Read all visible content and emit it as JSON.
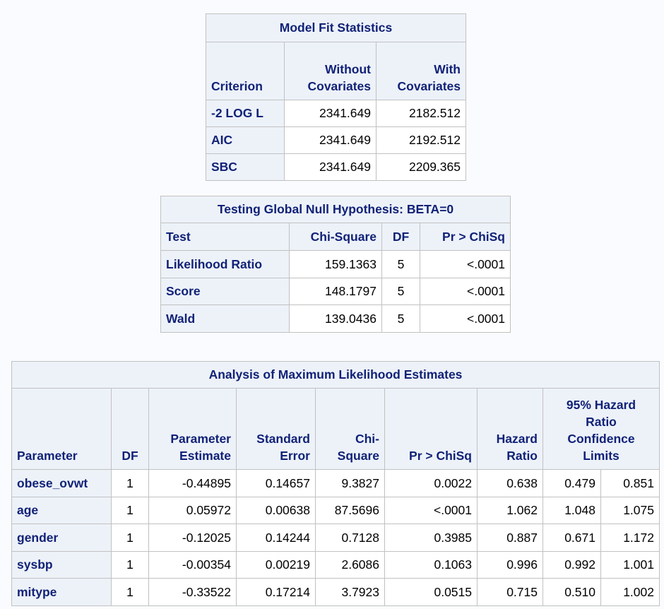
{
  "model_fit": {
    "title": "Model Fit Statistics",
    "headers": {
      "criterion": "Criterion",
      "without_1": "Without",
      "without_2": "Covariates",
      "with_1": "With",
      "with_2": "Covariates"
    },
    "rows": [
      {
        "criterion": "-2 LOG L",
        "without": "2341.649",
        "with": "2182.512"
      },
      {
        "criterion": "AIC",
        "without": "2341.649",
        "with": "2192.512"
      },
      {
        "criterion": "SBC",
        "without": "2341.649",
        "with": "2209.365"
      }
    ]
  },
  "global_null": {
    "title": "Testing Global Null Hypothesis: BETA=0",
    "headers": {
      "test": "Test",
      "chisq": "Chi-Square",
      "df": "DF",
      "p": "Pr > ChiSq"
    },
    "rows": [
      {
        "test": "Likelihood Ratio",
        "chisq": "159.1363",
        "df": "5",
        "p": "<.0001"
      },
      {
        "test": "Score",
        "chisq": "148.1797",
        "df": "5",
        "p": "<.0001"
      },
      {
        "test": "Wald",
        "chisq": "139.0436",
        "df": "5",
        "p": "<.0001"
      }
    ]
  },
  "mle": {
    "title": "Analysis of Maximum Likelihood Estimates",
    "headers": {
      "parameter": "Parameter",
      "df": "DF",
      "estimate_1": "Parameter",
      "estimate_2": "Estimate",
      "stderr_1": "Standard",
      "stderr_2": "Error",
      "chisq_1": "Chi-",
      "chisq_2": "Square",
      "p": "Pr > ChiSq",
      "hr_1": "Hazard",
      "hr_2": "Ratio",
      "ci_1": "95% Hazard",
      "ci_2": "Ratio",
      "ci_3": "Confidence",
      "ci_4": "Limits"
    },
    "rows": [
      {
        "parameter": "obese_ovwt",
        "df": "1",
        "estimate": "-0.44895",
        "stderr": "0.14657",
        "chisq": "9.3827",
        "p": "0.0022",
        "hr": "0.638",
        "lower": "0.479",
        "upper": "0.851"
      },
      {
        "parameter": "age",
        "df": "1",
        "estimate": "0.05972",
        "stderr": "0.00638",
        "chisq": "87.5696",
        "p": "<.0001",
        "hr": "1.062",
        "lower": "1.048",
        "upper": "1.075"
      },
      {
        "parameter": "gender",
        "df": "1",
        "estimate": "-0.12025",
        "stderr": "0.14244",
        "chisq": "0.7128",
        "p": "0.3985",
        "hr": "0.887",
        "lower": "0.671",
        "upper": "1.172"
      },
      {
        "parameter": "sysbp",
        "df": "1",
        "estimate": "-0.00354",
        "stderr": "0.00219",
        "chisq": "2.6086",
        "p": "0.1063",
        "hr": "0.996",
        "lower": "0.992",
        "upper": "1.001"
      },
      {
        "parameter": "mitype",
        "df": "1",
        "estimate": "-0.33522",
        "stderr": "0.17214",
        "chisq": "3.7923",
        "p": "0.0515",
        "hr": "0.715",
        "lower": "0.510",
        "upper": "1.002"
      }
    ]
  }
}
